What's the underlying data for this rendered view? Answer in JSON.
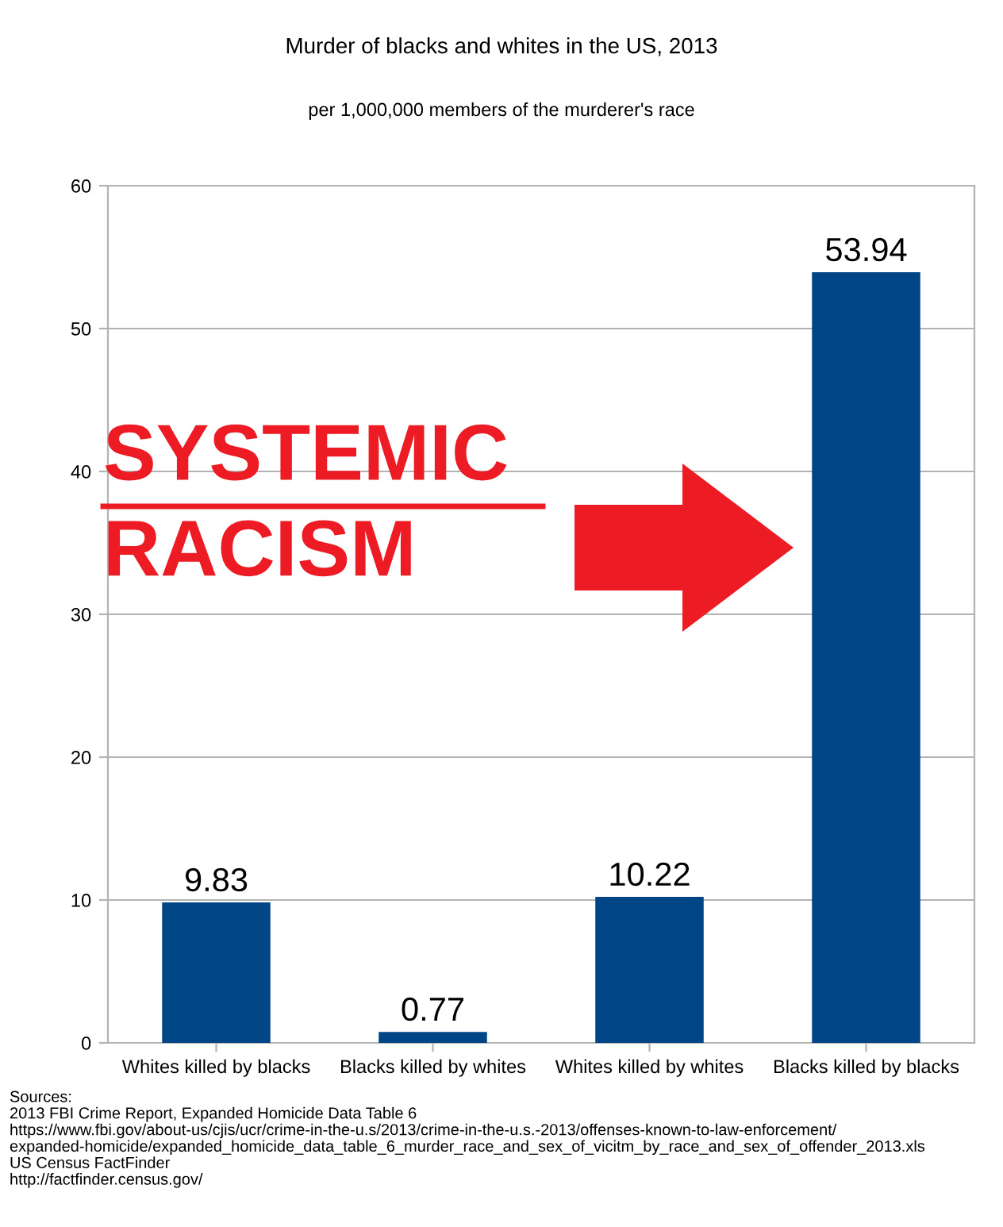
{
  "chart_data": {
    "type": "bar",
    "title": "Murder of blacks and whites in the US, 2013",
    "subtitle": "per 1,000,000 members of the murderer's race",
    "categories": [
      "Whites killed by blacks",
      "Blacks killed by whites",
      "Whites killed by whites",
      "Blacks killed by blacks"
    ],
    "values": [
      9.83,
      0.77,
      10.22,
      53.94
    ],
    "color": "#004586",
    "ylim": [
      0,
      60
    ],
    "yticks": [
      0,
      10,
      20,
      30,
      40,
      50,
      60
    ],
    "grid": "y",
    "data_labels": true,
    "annotations": [
      "SYSTEMIC\nRACISM",
      "Sources:\n2013 FBI Crime Report, Expanded Homicide Data Table 6\nhttps://www.fbi.gov/about-us/cjis/ucr/crime-in-the-u.s/2013/crime-in-the-u.s.-2013/offenses-known-to-law-enforcement/\nexpanded-homicide/expanded_homicide_data_table_6_murder_race_and_sex_of_vicitm_by_race_and_sex_of_offender_2013.xls\nUS Census FactFinder\nhttp://factfinder.census.gov/"
    ]
  }
}
